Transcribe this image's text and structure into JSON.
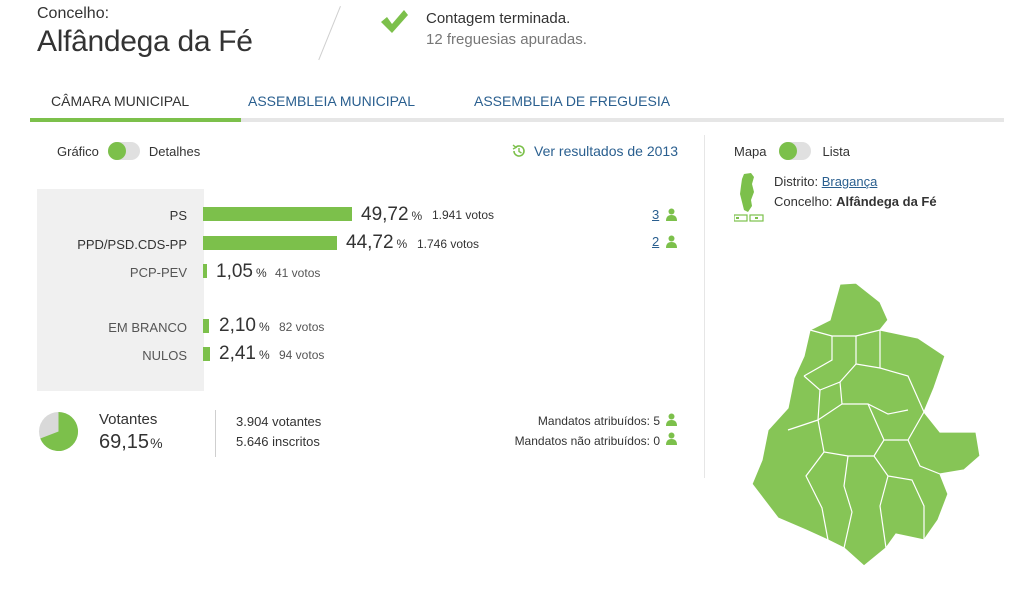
{
  "header": {
    "concelho_label": "Concelho:",
    "concelho_name": "Alfândega da Fé",
    "status_main": "Contagem terminada.",
    "status_sub": "12 freguesias apuradas."
  },
  "tabs": [
    {
      "label": "CÂMARA MUNICIPAL",
      "active": true
    },
    {
      "label": "ASSEMBLEIA MUNICIPAL",
      "active": false
    },
    {
      "label": "ASSEMBLEIA DE FREGUESIA",
      "active": false
    }
  ],
  "view_toggle": {
    "left": "Gráfico",
    "right": "Detalhes"
  },
  "previous_link": "Ver resultados de 2013",
  "results": [
    {
      "party": "PS",
      "pct": "49,72",
      "votes": "1.941 votos",
      "mandates": "3"
    },
    {
      "party": "PPD/PSD.CDS-PP",
      "pct": "44,72",
      "votes": "1.746 votos",
      "mandates": "2"
    },
    {
      "party": "PCP-PEV",
      "pct": "1,05",
      "votes": "41 votos",
      "mandates": ""
    },
    {
      "party": "EM BRANCO",
      "pct": "2,10",
      "votes": "82 votos",
      "mandates": ""
    },
    {
      "party": "NULOS",
      "pct": "2,41",
      "votes": "94 votos",
      "mandates": ""
    }
  ],
  "percent_sign": "%",
  "turnout": {
    "label": "Votantes",
    "pct": "69,15",
    "pct_value": 69.15,
    "votantes": "3.904 votantes",
    "inscritos": "5.646 inscritos",
    "mandatos_atribuidos": "Mandatos atribuídos: 5",
    "mandatos_nao_atribuidos": "Mandatos não atribuídos: 0"
  },
  "map_panel": {
    "toggle_left": "Mapa",
    "toggle_right": "Lista",
    "distrito_label": "Distrito:",
    "distrito_value": "Bragança",
    "concelho_label": "Concelho:",
    "concelho_value": "Alfândega da Fé"
  },
  "colors": {
    "accent": "#7cc04b",
    "link": "#2a5f8f",
    "panel_bg": "#f0f0f0"
  },
  "icons": {
    "status": "check-icon",
    "history": "history-icon",
    "person": "person-icon"
  }
}
